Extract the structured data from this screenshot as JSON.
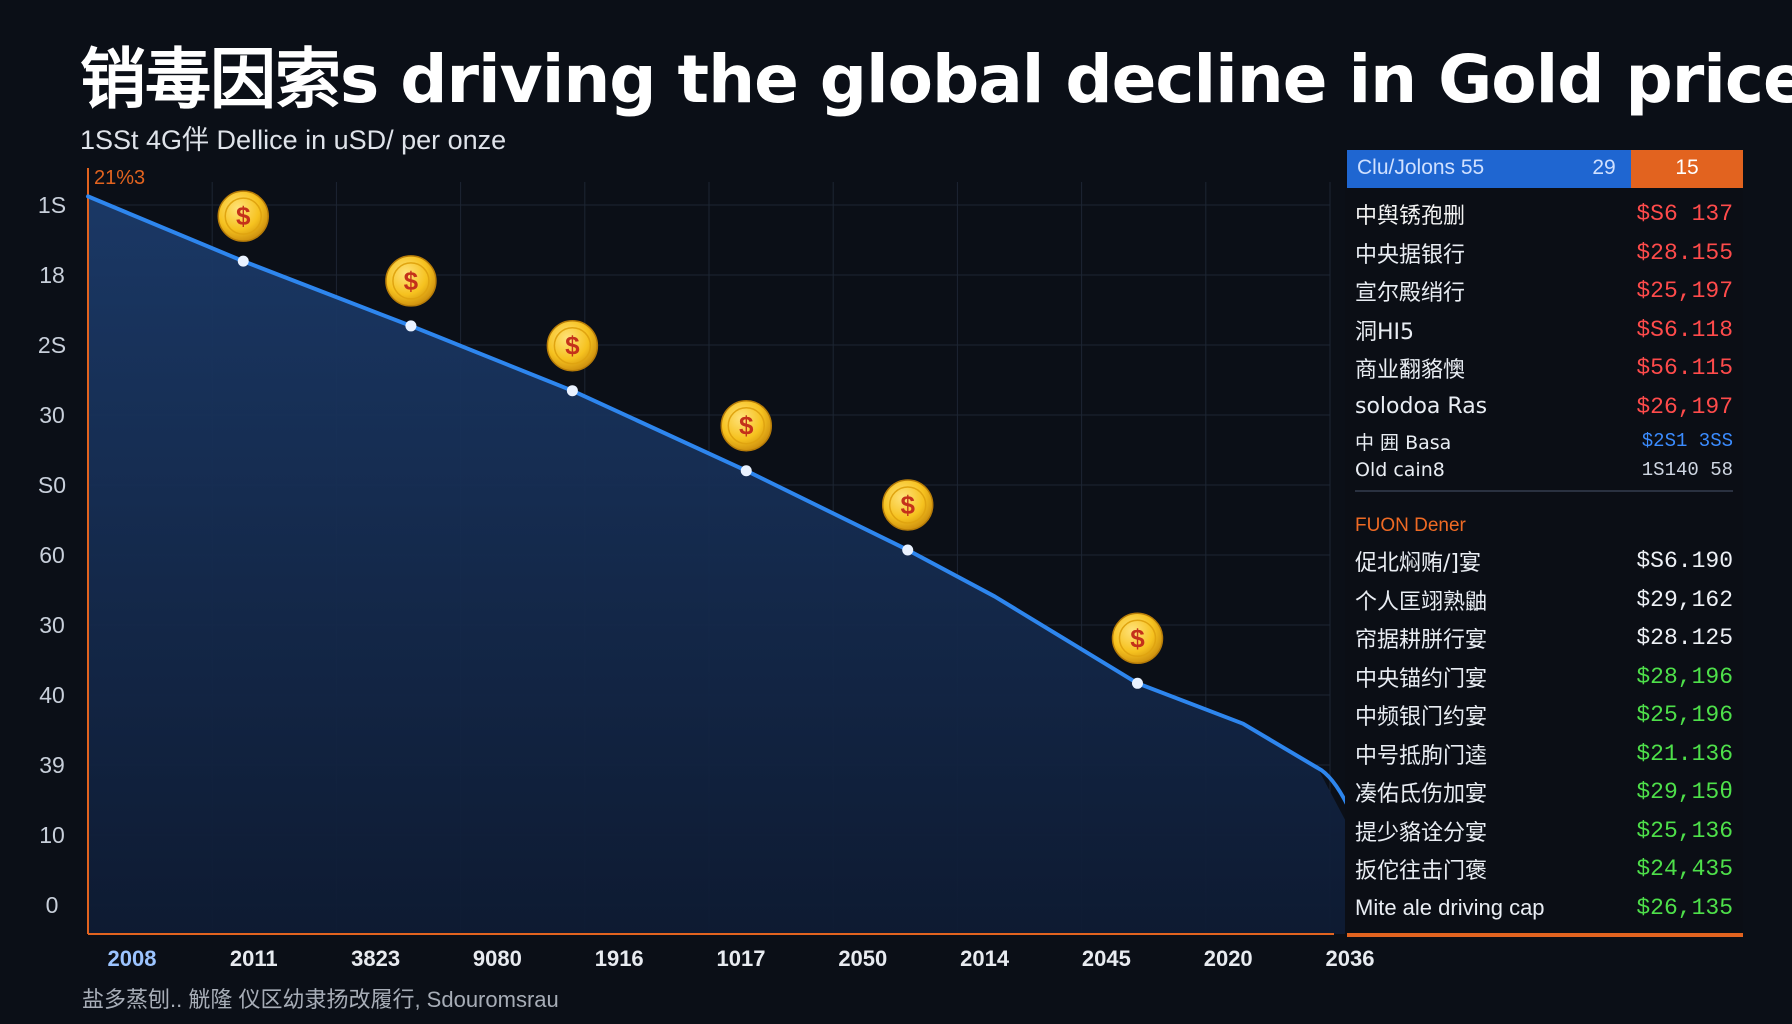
{
  "title": "销毒因索s driving the global decline in Gold prices",
  "subtitle": "1SSt 4G伴 Dellice in uSD/ per onze",
  "footer": "盐多蒸刨.. 觥隆 仪区幼隶扬改履行, Sdouromsrau",
  "colors": {
    "background": "#0b0f17",
    "line": "#2e86ee",
    "area_top": "#1b3a69",
    "area_bottom": "#0e1b33",
    "coin": "#f6c21f",
    "orange": "#e2631f",
    "blue_header": "#1f66d1",
    "red_value": "#ff4b4b",
    "green_value": "#4ee04a",
    "grid": "#1d2533"
  },
  "chart_data": {
    "type": "area",
    "title": "销毒因索s driving the global decline in Gold prices",
    "ylabel": "1SSt 4G伴 Dellice in uSD/ per onze",
    "xlabel": "",
    "top_axis_label": "21%3",
    "y_ticks": [
      "1S",
      "18",
      "2S",
      "30",
      "S0",
      "60",
      "30",
      "40",
      "39",
      "10",
      "0"
    ],
    "x_ticks": [
      "2008",
      "2011",
      "3823",
      "9080",
      "1916",
      "1017",
      "2050",
      "2014",
      "2045",
      "2020",
      "2036"
    ],
    "ylim": [
      0,
      100
    ],
    "x_index_range": [
      0,
      10
    ],
    "series": [
      {
        "x": [
          0,
          1.25,
          2.6,
          3.9,
          5.3,
          6.6,
          7.3,
          8.45,
          9.3,
          9.9
        ],
        "values": [
          96.8,
          88.3,
          79.8,
          71.3,
          60.8,
          50.4,
          44.3,
          32.9,
          27.6,
          21.8
        ]
      }
    ],
    "coin_markers": [
      {
        "x": 1.25,
        "y": 88.3,
        "label": "$"
      },
      {
        "x": 2.6,
        "y": 79.8,
        "label": "$"
      },
      {
        "x": 3.9,
        "y": 71.3,
        "label": "$"
      },
      {
        "x": 5.3,
        "y": 60.8,
        "label": "$"
      },
      {
        "x": 6.6,
        "y": 50.4,
        "label": "$"
      },
      {
        "x": 8.45,
        "y": 32.9,
        "label": "$"
      }
    ],
    "end_arrow": true,
    "grid": true
  },
  "panel": {
    "header": [
      "Clu/Jolons 55",
      "29",
      "15"
    ],
    "rows_top": [
      {
        "label": "中舆锈孢删",
        "value": "$S6 137",
        "value_color": "red",
        "label_color": "red_mix"
      },
      {
        "label": "中央据银行",
        "value": "$28.155",
        "value_color": "red"
      },
      {
        "label": "宣尔殿绡行",
        "value": "$25,197",
        "value_color": "red"
      },
      {
        "label": "洞HI5",
        "value": "$S6.118",
        "value_color": "red"
      },
      {
        "label": "商业翻貉懊",
        "value": "$56.115",
        "value_color": "red"
      },
      {
        "label": "solodoa Ras",
        "value": "$26,197",
        "value_color": "red"
      },
      {
        "label": "中 囲 Basa",
        "value": "$2S1 3SS",
        "value_color": "blue"
      }
    ],
    "row_small": {
      "label": "Old cain8",
      "value": "1S140 58"
    },
    "section_title": "FUON Dener",
    "rows_bottom": [
      {
        "label": "促北焖贿/]宴",
        "value": "$S6.190",
        "value_color": "white"
      },
      {
        "label": "个人匡翊熟鼬",
        "value": "$29,162",
        "value_color": "white"
      },
      {
        "label": "帘据耕胼行宴",
        "value": "$28.125",
        "value_color": "white"
      },
      {
        "label": "中央锚约门宴",
        "value": "$28,196",
        "value_color": "green"
      },
      {
        "label": "中频银门约宴",
        "value": "$25,196",
        "value_color": "green"
      },
      {
        "label": "中号抵朐门逵",
        "value": "$21.136",
        "value_color": "green"
      },
      {
        "label": "凑佑氐伤加宴",
        "value": "$29,15θ",
        "value_color": "green"
      },
      {
        "label": "提少貉诠分宴",
        "value": "$25,136",
        "value_color": "green"
      },
      {
        "label": "扳佗往击门褒",
        "value": "$24,435",
        "value_color": "green"
      },
      {
        "label": "Mite ale driving cap",
        "value": "$26,135",
        "value_color": "green"
      }
    ]
  }
}
